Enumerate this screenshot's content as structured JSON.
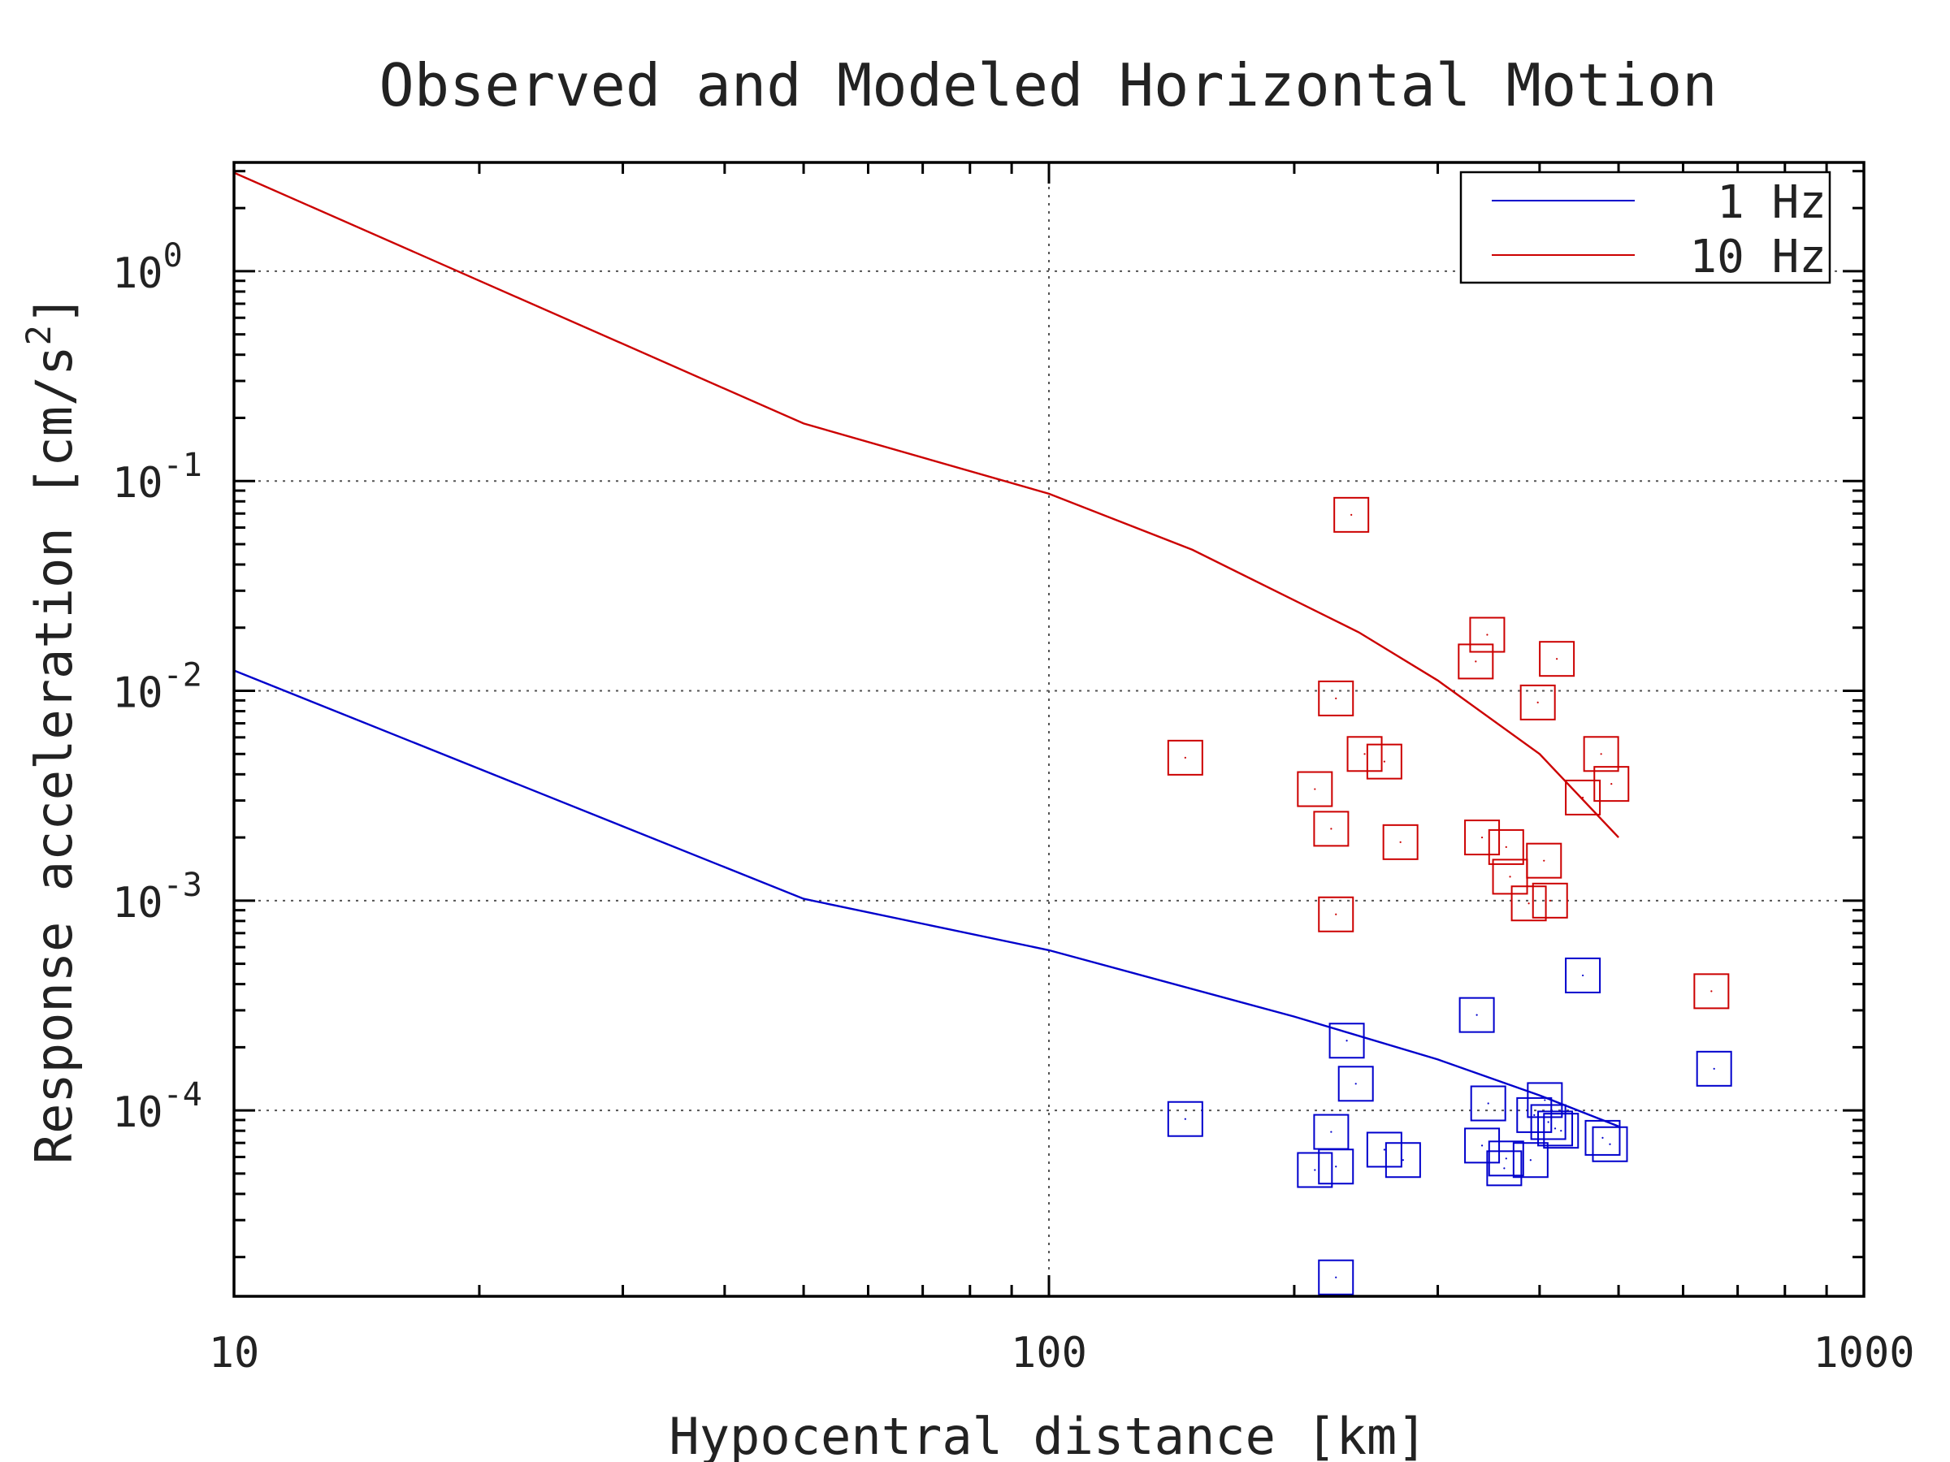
{
  "chart_data": {
    "type": "scatter",
    "title": "Observed and Modeled Horizontal Motion",
    "xlabel": "Hypocentral distance [km]",
    "ylabel_main": "Response acceleration [cm/s",
    "ylabel_sup": "2",
    "ylabel_close": "]",
    "x_scale": "log",
    "y_scale": "log",
    "xlim": [
      10,
      1000
    ],
    "ylim": [
      1.3e-05,
      3.3
    ],
    "grid": true,
    "legend_position": "top-right",
    "x_tick_labels": [
      {
        "value": 10,
        "label": "10"
      },
      {
        "value": 100,
        "label": "100"
      },
      {
        "value": 1000,
        "label": "1000"
      }
    ],
    "y_tick_labels": [
      {
        "value": 1,
        "base": "10",
        "exp": "0"
      },
      {
        "value": 0.1,
        "base": "10",
        "exp": "-1"
      },
      {
        "value": 0.01,
        "base": "10",
        "exp": "-2"
      },
      {
        "value": 0.001,
        "base": "10",
        "exp": "-3"
      },
      {
        "value": 0.0001,
        "base": "10",
        "exp": "-4"
      }
    ],
    "series": [
      {
        "name": "1 Hz",
        "color": "#0000cc",
        "model_line": [
          [
            10,
            0.0125
          ],
          [
            50,
            0.00102
          ],
          [
            100,
            0.00058
          ],
          [
            200,
            0.00028
          ],
          [
            300,
            0.000175
          ],
          [
            400,
            0.000118
          ],
          [
            500,
            8.4e-05
          ]
        ],
        "observed": [
          [
            147,
            9.1e-05
          ],
          [
            212,
            5.2e-05
          ],
          [
            222,
            7.9e-05
          ],
          [
            225,
            5.4e-05
          ],
          [
            225,
            1.6e-05
          ],
          [
            232,
            0.000215
          ],
          [
            238,
            0.000134
          ],
          [
            258,
            6.5e-05
          ],
          [
            272,
            5.8e-05
          ],
          [
            335,
            0.000285
          ],
          [
            340,
            6.8e-05
          ],
          [
            346,
            0.000108
          ],
          [
            362,
            5.3e-05
          ],
          [
            364,
            5.9e-05
          ],
          [
            390,
            5.8e-05
          ],
          [
            394,
            9.5e-05
          ],
          [
            406,
            0.000112
          ],
          [
            410,
            8.8e-05
          ],
          [
            418,
            8.2e-05
          ],
          [
            425,
            8e-05
          ],
          [
            452,
            0.00044
          ],
          [
            478,
            7.4e-05
          ],
          [
            488,
            6.9e-05
          ],
          [
            655,
            0.000158
          ]
        ]
      },
      {
        "name": "10 Hz",
        "color": "#cc0000",
        "model_line": [
          [
            10,
            2.95
          ],
          [
            50,
            0.188
          ],
          [
            100,
            0.087
          ],
          [
            150,
            0.047
          ],
          [
            200,
            0.027
          ],
          [
            240,
            0.019
          ],
          [
            300,
            0.0112
          ],
          [
            400,
            0.005
          ],
          [
            500,
            0.002
          ]
        ],
        "observed": [
          [
            147,
            0.0048
          ],
          [
            212,
            0.0034
          ],
          [
            222,
            0.0022
          ],
          [
            225,
            0.00086
          ],
          [
            225,
            0.0092
          ],
          [
            235,
            0.069
          ],
          [
            244,
            0.005
          ],
          [
            258,
            0.0046
          ],
          [
            270,
            0.0019
          ],
          [
            334,
            0.0138
          ],
          [
            340,
            0.002
          ],
          [
            345,
            0.0185
          ],
          [
            364,
            0.0018
          ],
          [
            368,
            0.0013
          ],
          [
            388,
            0.00097
          ],
          [
            398,
            0.0088
          ],
          [
            405,
            0.00155
          ],
          [
            412,
            0.001
          ],
          [
            420,
            0.0142
          ],
          [
            452,
            0.0031
          ],
          [
            476,
            0.005
          ],
          [
            490,
            0.0036
          ],
          [
            650,
            0.00037
          ]
        ]
      }
    ]
  }
}
